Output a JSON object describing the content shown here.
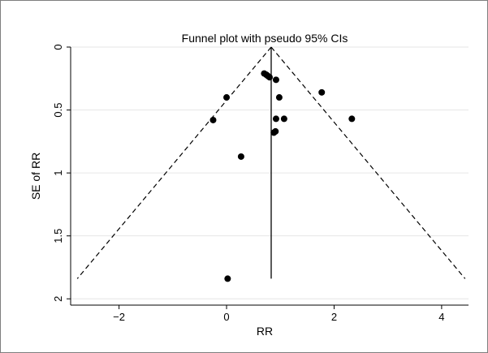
{
  "chart_data": {
    "type": "scatter",
    "title": "Funnel plot with pseudo 95% CIs",
    "xlabel": "RR",
    "ylabel": "SE of RR",
    "xlim": [
      -2.9,
      4.5
    ],
    "ylim": [
      0,
      2.05
    ],
    "y_reversed": true,
    "grid": true,
    "x_ticks": [
      {
        "value": -2,
        "label": "−2"
      },
      {
        "value": 0,
        "label": "0"
      },
      {
        "value": 2,
        "label": "2"
      },
      {
        "value": 4,
        "label": "4"
      }
    ],
    "y_ticks": [
      {
        "value": 0,
        "label": "0"
      },
      {
        "value": 0.5,
        "label": "0.5"
      },
      {
        "value": 1,
        "label": "1"
      },
      {
        "value": 1.5,
        "label": "1.5"
      },
      {
        "value": 2,
        "label": "2"
      }
    ],
    "pooled_estimate": 0.83,
    "pseudo_ci_z": 1.96,
    "ci_se_max": 1.84,
    "points": [
      {
        "x": 0.7,
        "y": 0.21
      },
      {
        "x": 0.74,
        "y": 0.22
      },
      {
        "x": 0.77,
        "y": 0.23
      },
      {
        "x": 0.8,
        "y": 0.24
      },
      {
        "x": 0.92,
        "y": 0.26
      },
      {
        "x": 1.77,
        "y": 0.36
      },
      {
        "x": 0.0,
        "y": 0.4
      },
      {
        "x": 0.98,
        "y": 0.4
      },
      {
        "x": -0.25,
        "y": 0.58
      },
      {
        "x": 0.92,
        "y": 0.57
      },
      {
        "x": 1.07,
        "y": 0.57
      },
      {
        "x": 2.33,
        "y": 0.57
      },
      {
        "x": 0.88,
        "y": 0.68
      },
      {
        "x": 0.91,
        "y": 0.67
      },
      {
        "x": 0.27,
        "y": 0.87
      },
      {
        "x": 0.02,
        "y": 1.84
      }
    ]
  }
}
